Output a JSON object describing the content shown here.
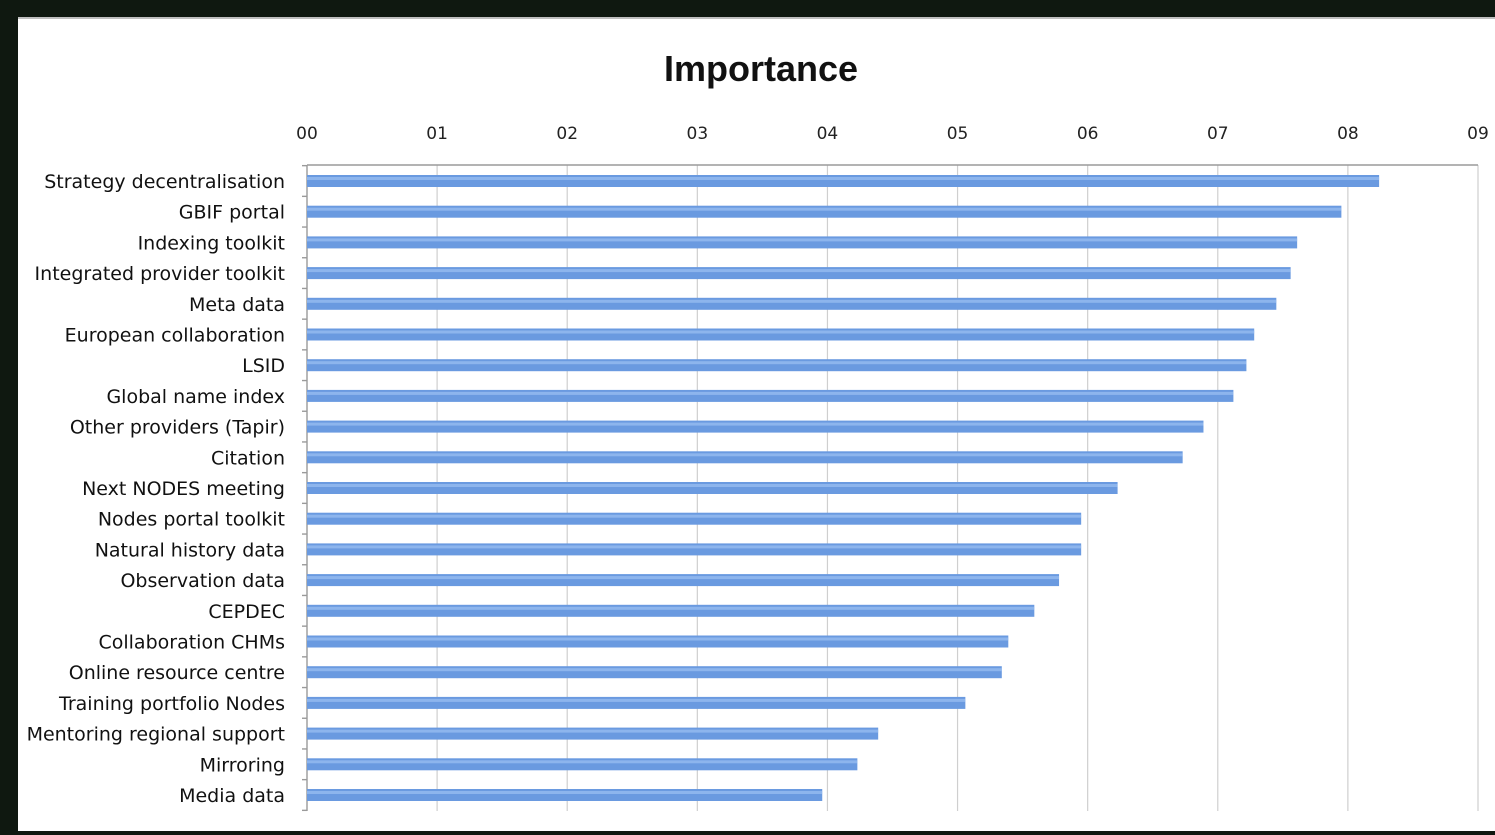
{
  "chart_data": {
    "type": "bar",
    "orientation": "horizontal",
    "title": "Importance",
    "xlabel": "",
    "ylabel": "",
    "xaxis_position": "top",
    "tick_labels": [
      "00",
      "01",
      "02",
      "03",
      "04",
      "05",
      "06",
      "07",
      "08",
      "09"
    ],
    "xlim": [
      0,
      9
    ],
    "grid": true,
    "legend": "none",
    "bar_color": "#6a9ae0",
    "categories": [
      "Strategy decentralisation",
      "GBIF portal",
      "Indexing toolkit",
      "Integrated provider toolkit",
      "Meta data",
      "European collaboration",
      "LSID",
      "Global name index",
      "Other providers (Tapir)",
      "Citation",
      "Next NODES meeting",
      "Nodes portal toolkit",
      "Natural history data",
      "Observation data",
      "CEPDEC",
      "Collaboration CHMs",
      "Online resource centre",
      "Training portfolio Nodes",
      "Mentoring regional support",
      "Mirroring",
      "Media data"
    ],
    "values": [
      8.24,
      7.95,
      7.61,
      7.56,
      7.45,
      7.28,
      7.22,
      7.12,
      6.89,
      6.73,
      6.23,
      5.95,
      5.95,
      5.78,
      5.59,
      5.39,
      5.34,
      5.06,
      4.39,
      4.23,
      3.96
    ]
  }
}
